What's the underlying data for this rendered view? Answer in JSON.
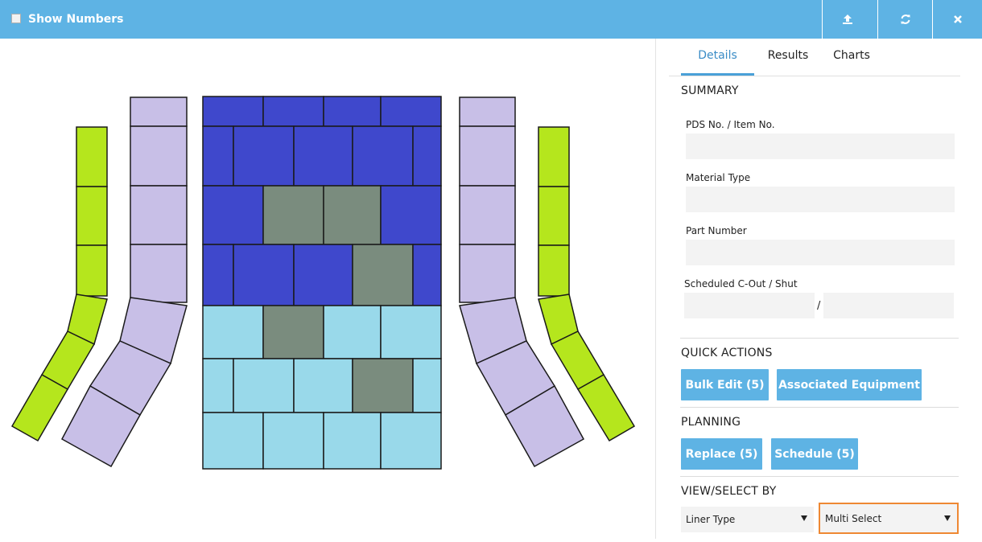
{
  "window": {
    "title": "Show Numbers"
  },
  "toolbar": {
    "icons": [
      "upload-icon",
      "refresh-icon",
      "close-icon"
    ]
  },
  "colors": {
    "titlebar": "#5eb3e4",
    "dark_blue": "#3f48cc",
    "light_blue": "#99d9ea",
    "gray_green": "#7a8c7e",
    "lavender": "#c8bfe7",
    "lime": "#b5e61d",
    "highlight_border": "#ee8833"
  },
  "tabs": [
    {
      "label": "Details",
      "active": true
    },
    {
      "label": "Results",
      "active": false
    },
    {
      "label": "Charts",
      "active": false
    }
  ],
  "summary": {
    "title": "SUMMARY",
    "pds_label": "PDS No. / Item No.",
    "pds_value": "",
    "material_label": "Material Type",
    "material_value": "",
    "part_label": "Part Number",
    "part_value": "",
    "cout_label": "Scheduled C-Out / Shut",
    "cout_value": "",
    "shut_value": "",
    "separator": "/"
  },
  "quick_actions": {
    "title": "QUICK ACTIONS",
    "bulk_edit": "Bulk Edit (5)",
    "associated": "Associated Equipment"
  },
  "planning": {
    "title": "PLANNING",
    "replace": "Replace (5)",
    "schedule": "Schedule (5)"
  },
  "view_select": {
    "title": "VIEW/SELECT BY",
    "by_value": "Liner Type",
    "mode_value": "Multi Select"
  }
}
